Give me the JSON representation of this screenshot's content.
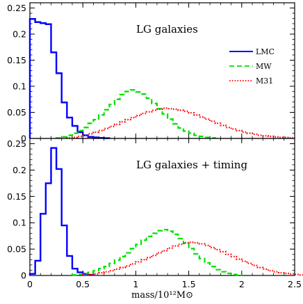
{
  "chart_data": [
    {
      "type": "line",
      "step": true,
      "title": "LG galaxies",
      "xlabel": "",
      "ylabel": "",
      "xlim": [
        0,
        2.5
      ],
      "ylim": [
        0,
        0.26
      ],
      "xticks": [
        0,
        0.5,
        1,
        1.5,
        2,
        2.5
      ],
      "yticks": [
        0,
        0.05,
        0.1,
        0.15,
        0.2,
        0.25
      ],
      "xtick_labels": [
        "",
        "",
        "",
        "",
        "",
        ""
      ],
      "ytick_labels": [
        "0",
        "0.05",
        "0.1",
        "0.15",
        "0.2",
        "0.25"
      ],
      "legend_position": "right",
      "series": [
        {
          "name": "LMC",
          "color": "#0000ff",
          "dash": "solid",
          "bin_width": 0.05,
          "x_start": 0,
          "values": [
            0.229,
            0.223,
            0.221,
            0.219,
            0.165,
            0.125,
            0.069,
            0.04,
            0.024,
            0.012,
            0.006,
            0.003,
            0.002,
            0.001,
            0.0005
          ]
        },
        {
          "name": "MW",
          "color": "#00dd00",
          "dash": "dashed",
          "bin_width": 0.05,
          "x_start": 0.25,
          "values": [
            0.001,
            0.003,
            0.006,
            0.01,
            0.015,
            0.021,
            0.029,
            0.036,
            0.045,
            0.055,
            0.065,
            0.075,
            0.084,
            0.09,
            0.093,
            0.089,
            0.085,
            0.077,
            0.067,
            0.057,
            0.047,
            0.037,
            0.028,
            0.02,
            0.014,
            0.01,
            0.006,
            0.004,
            0.002,
            0.001
          ]
        },
        {
          "name": "M31",
          "color": "#ff0000",
          "dash": "dotted",
          "bin_width": 0.05,
          "x_start": 0.35,
          "values": [
            0.001,
            0.002,
            0.004,
            0.006,
            0.009,
            0.012,
            0.015,
            0.019,
            0.023,
            0.027,
            0.032,
            0.036,
            0.04,
            0.044,
            0.048,
            0.051,
            0.054,
            0.056,
            0.058,
            0.057,
            0.056,
            0.054,
            0.052,
            0.049,
            0.045,
            0.041,
            0.037,
            0.033,
            0.029,
            0.025,
            0.021,
            0.018,
            0.015,
            0.012,
            0.01,
            0.008,
            0.006,
            0.005,
            0.004,
            0.003,
            0.002,
            0.002,
            0.001
          ]
        }
      ]
    },
    {
      "type": "line",
      "step": true,
      "title": "LG galaxies + timing",
      "xlabel": "mass/10¹²M⊙",
      "ylabel": "",
      "xlim": [
        0,
        2.5
      ],
      "ylim": [
        0,
        0.26
      ],
      "xticks": [
        0,
        0.5,
        1,
        1.5,
        2,
        2.5
      ],
      "yticks": [
        0,
        0.05,
        0.1,
        0.15,
        0.2,
        0.25
      ],
      "xtick_labels": [
        "0",
        "0.5",
        "1",
        "1.5",
        "2",
        "2.5"
      ],
      "ytick_labels": [
        "0",
        "0.05",
        "0.1",
        "0.15",
        "0.2",
        "0.25"
      ],
      "series": [
        {
          "name": "LMC",
          "color": "#0000ff",
          "dash": "solid",
          "bin_width": 0.05,
          "x_start": 0,
          "values": [
            0.003,
            0.028,
            0.117,
            0.175,
            0.242,
            0.202,
            0.095,
            0.037,
            0.013,
            0.006,
            0.003,
            0.001
          ]
        },
        {
          "name": "MW",
          "color": "#00dd00",
          "dash": "dashed",
          "bin_width": 0.05,
          "x_start": 0.4,
          "values": [
            0.001,
            0.002,
            0.004,
            0.006,
            0.009,
            0.013,
            0.017,
            0.023,
            0.029,
            0.036,
            0.043,
            0.051,
            0.059,
            0.067,
            0.074,
            0.08,
            0.085,
            0.087,
            0.084,
            0.078,
            0.07,
            0.061,
            0.051,
            0.041,
            0.032,
            0.024,
            0.017,
            0.011,
            0.007,
            0.004,
            0.002,
            0.001
          ]
        },
        {
          "name": "M31",
          "color": "#ff0000",
          "dash": "dotted",
          "bin_width": 0.05,
          "x_start": 0.5,
          "values": [
            0.001,
            0.002,
            0.003,
            0.005,
            0.007,
            0.009,
            0.012,
            0.015,
            0.018,
            0.022,
            0.026,
            0.03,
            0.034,
            0.038,
            0.043,
            0.047,
            0.052,
            0.056,
            0.059,
            0.062,
            0.063,
            0.062,
            0.06,
            0.057,
            0.053,
            0.049,
            0.045,
            0.04,
            0.036,
            0.031,
            0.027,
            0.023,
            0.019,
            0.015,
            0.012,
            0.009,
            0.007,
            0.005,
            0.004,
            0.003,
            0.002,
            0.001
          ]
        }
      ]
    }
  ]
}
